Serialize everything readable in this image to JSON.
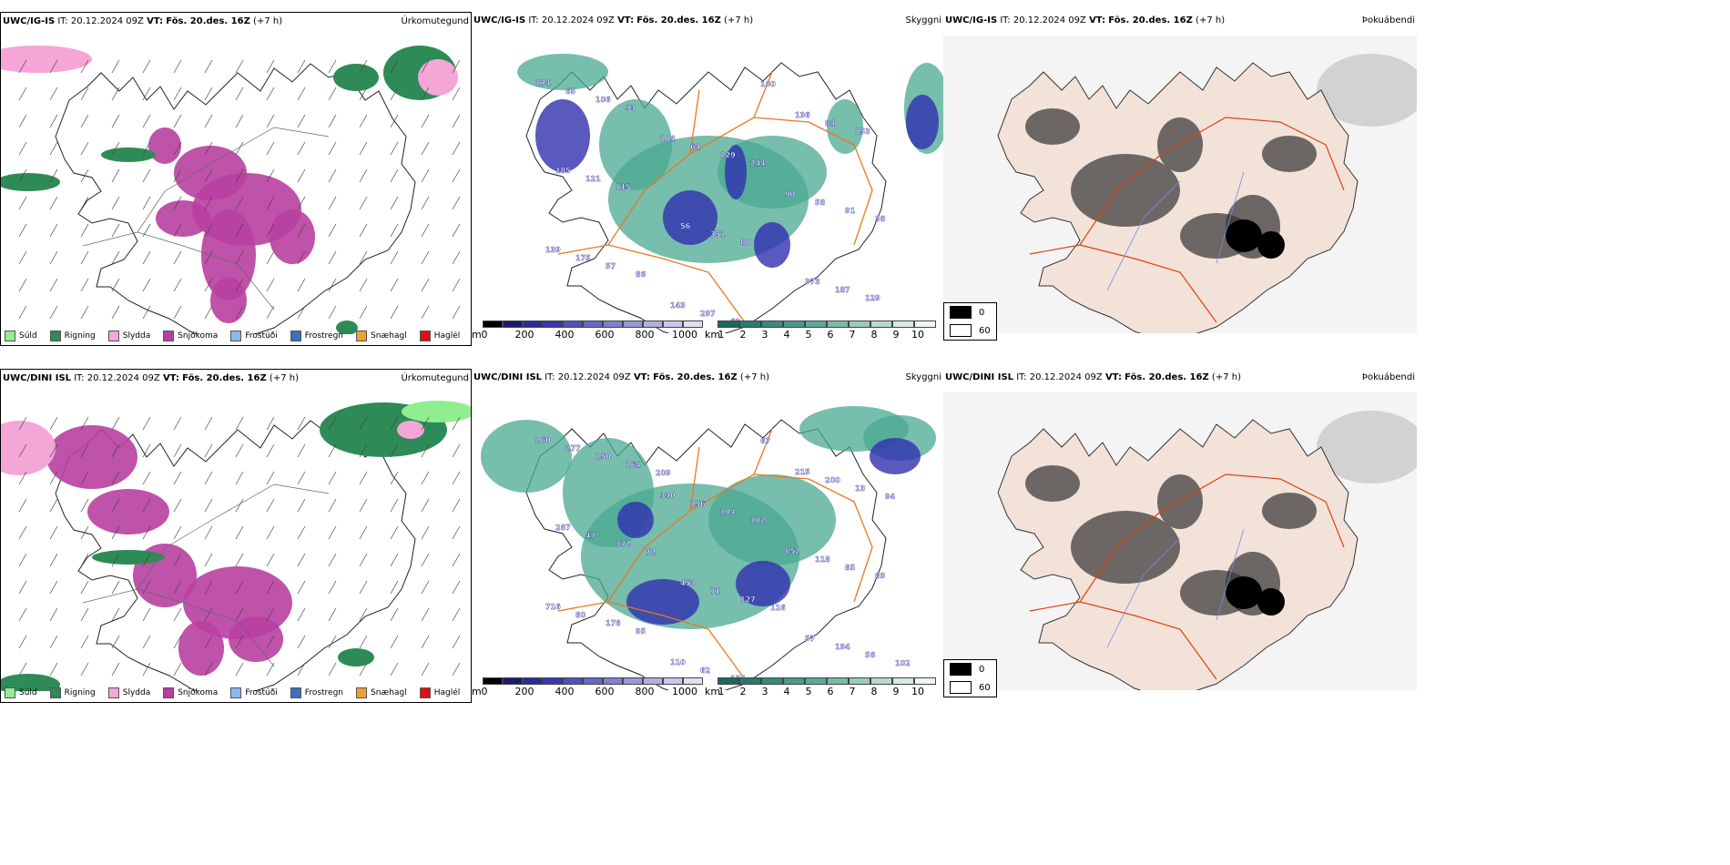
{
  "rows": [
    {
      "model": "UWC/IG-IS",
      "panels": [
        {
          "it_label": "IT:",
          "it_value": "20.12.2024 09Z",
          "vt_label": "VT:",
          "vt_value": "Fös. 20.des. 16Z",
          "lead": "(+7 h)",
          "right": "Úrkomutegund"
        },
        {
          "it_label": "IT:",
          "it_value": "20.12.2024 09Z",
          "vt_label": "VT:",
          "vt_value": "Fös. 20.des. 16Z",
          "lead": "(+7 h)",
          "right": "Skyggni"
        },
        {
          "it_label": "IT:",
          "it_value": "20.12.2024 09Z",
          "vt_label": "VT:",
          "vt_value": "Fös. 20.des. 16Z",
          "lead": "(+7 h)",
          "right": "Þokuábendi"
        }
      ],
      "labels": [
        "174",
        "104",
        "90",
        "139",
        "143",
        "136",
        "185",
        "56",
        "373",
        "65",
        "64",
        "58",
        "175",
        "297",
        "84",
        "121",
        "351",
        "187",
        "106",
        "129",
        "91",
        "57",
        "63",
        "153",
        "115",
        "80",
        "129",
        "93",
        "244",
        "38",
        "86",
        "100"
      ]
    },
    {
      "model": "UWC/DINI ISL",
      "panels": [
        {
          "it_label": "IT:",
          "it_value": "20.12.2024 09Z",
          "vt_label": "VT:",
          "vt_value": "Fös. 20.des. 16Z",
          "lead": "(+7 h)",
          "right": "Úrkomutegund"
        },
        {
          "it_label": "IT:",
          "it_value": "20.12.2024 09Z",
          "vt_label": "VT:",
          "vt_value": "Fös. 20.des. 16Z",
          "lead": "(+7 h)",
          "right": "Skyggni"
        },
        {
          "it_label": "IT:",
          "it_value": "20.12.2024 09Z",
          "vt_label": "VT:",
          "vt_value": "Fös. 20.des. 16Z",
          "lead": "(+7 h)",
          "right": "Þokuábendi"
        }
      ],
      "labels": [
        "260",
        "330",
        "852",
        "716",
        "110",
        "215",
        "287",
        "453",
        "57",
        "277",
        "156",
        "118",
        "80",
        "62",
        "200",
        "47",
        "71",
        "194",
        "150",
        "104",
        "85",
        "178",
        "174",
        "13",
        "172",
        "127",
        "56",
        "164",
        "102",
        "89",
        "95",
        "67",
        "94",
        "72",
        "116",
        "102",
        "209"
      ]
    }
  ],
  "precip_legend": [
    {
      "label": "Súld",
      "color": "#90ee90"
    },
    {
      "label": "Rigning",
      "color": "#2e8b57"
    },
    {
      "label": "Slydda",
      "color": "#f4a6d7"
    },
    {
      "label": "Snjókoma",
      "color": "#b83fa0"
    },
    {
      "label": "Frostúði",
      "color": "#8cb8f0"
    },
    {
      "label": "Frostregn",
      "color": "#3c6fbf"
    },
    {
      "label": "Snæhagl",
      "color": "#f0a030"
    },
    {
      "label": "Haglél",
      "color": "#e01010"
    }
  ],
  "ceiling_bar": {
    "unit": "m",
    "ticks": [
      "0",
      "200",
      "400",
      "600",
      "800",
      "1000"
    ]
  },
  "visibility_bar": {
    "unit": "km",
    "ticks": [
      "1",
      "2",
      "3",
      "4",
      "5",
      "6",
      "7",
      "8",
      "9",
      "10"
    ]
  },
  "fog_legend": [
    {
      "label": "0",
      "color": "#000000"
    },
    {
      "label": "60",
      "color": "#ffffff"
    }
  ],
  "colors": {
    "snow": "#b83fa0",
    "rain": "#2e8b57",
    "drizzle": "#90ee90",
    "sleet": "#f4a6d7",
    "teal": "#4aa890",
    "blue": "#3030b0",
    "road": "#e87820",
    "land": "#f2e2d8"
  }
}
